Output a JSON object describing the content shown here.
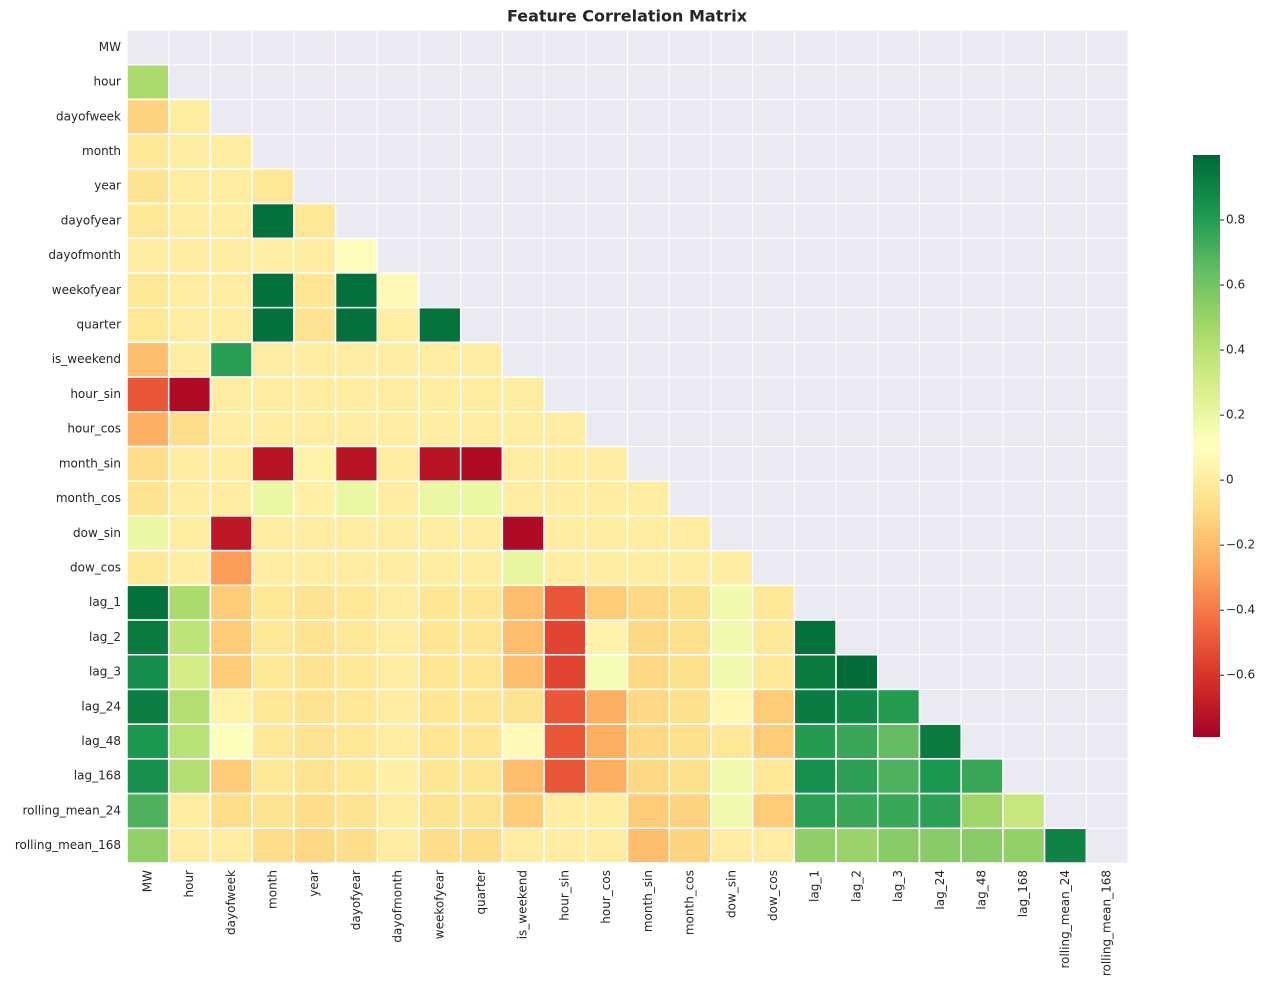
{
  "chart_data": {
    "type": "heatmap",
    "title": "Feature Correlation Matrix",
    "labels": [
      "MW",
      "hour",
      "dayofweek",
      "month",
      "year",
      "dayofyear",
      "dayofmonth",
      "weekofyear",
      "quarter",
      "is_weekend",
      "hour_sin",
      "hour_cos",
      "month_sin",
      "month_cos",
      "dow_sin",
      "dow_cos",
      "lag_1",
      "lag_2",
      "lag_3",
      "lag_24",
      "lag_48",
      "lag_168",
      "rolling_mean_24",
      "rolling_mean_168"
    ],
    "matrix": [
      [
        null,
        null,
        null,
        null,
        null,
        null,
        null,
        null,
        null,
        null,
        null,
        null,
        null,
        null,
        null,
        null,
        null,
        null,
        null,
        null,
        null,
        null,
        null,
        null
      ],
      [
        0.45,
        null,
        null,
        null,
        null,
        null,
        null,
        null,
        null,
        null,
        null,
        null,
        null,
        null,
        null,
        null,
        null,
        null,
        null,
        null,
        null,
        null,
        null,
        null
      ],
      [
        -0.12,
        0.0,
        null,
        null,
        null,
        null,
        null,
        null,
        null,
        null,
        null,
        null,
        null,
        null,
        null,
        null,
        null,
        null,
        null,
        null,
        null,
        null,
        null,
        null
      ],
      [
        -0.03,
        0.0,
        0.0,
        null,
        null,
        null,
        null,
        null,
        null,
        null,
        null,
        null,
        null,
        null,
        null,
        null,
        null,
        null,
        null,
        null,
        null,
        null,
        null,
        null
      ],
      [
        -0.05,
        0.0,
        0.0,
        -0.03,
        null,
        null,
        null,
        null,
        null,
        null,
        null,
        null,
        null,
        null,
        null,
        null,
        null,
        null,
        null,
        null,
        null,
        null,
        null,
        null
      ],
      [
        -0.03,
        0.0,
        0.0,
        0.97,
        -0.03,
        null,
        null,
        null,
        null,
        null,
        null,
        null,
        null,
        null,
        null,
        null,
        null,
        null,
        null,
        null,
        null,
        null,
        null,
        null
      ],
      [
        0.0,
        0.0,
        0.0,
        0.01,
        0.0,
        0.09,
        null,
        null,
        null,
        null,
        null,
        null,
        null,
        null,
        null,
        null,
        null,
        null,
        null,
        null,
        null,
        null,
        null,
        null
      ],
      [
        -0.03,
        0.0,
        0.0,
        0.97,
        -0.04,
        0.97,
        0.07,
        null,
        null,
        null,
        null,
        null,
        null,
        null,
        null,
        null,
        null,
        null,
        null,
        null,
        null,
        null,
        null,
        null
      ],
      [
        -0.03,
        0.0,
        0.0,
        0.97,
        -0.05,
        0.97,
        0.01,
        0.96,
        null,
        null,
        null,
        null,
        null,
        null,
        null,
        null,
        null,
        null,
        null,
        null,
        null,
        null,
        null,
        null
      ],
      [
        -0.2,
        0.0,
        0.79,
        0.0,
        0.0,
        0.0,
        0.0,
        0.0,
        0.0,
        null,
        null,
        null,
        null,
        null,
        null,
        null,
        null,
        null,
        null,
        null,
        null,
        null,
        null,
        null
      ],
      [
        -0.5,
        -0.75,
        0.0,
        0.0,
        0.0,
        0.0,
        0.0,
        0.0,
        0.0,
        0.0,
        null,
        null,
        null,
        null,
        null,
        null,
        null,
        null,
        null,
        null,
        null,
        null,
        null,
        null
      ],
      [
        -0.25,
        -0.08,
        0.0,
        0.0,
        0.0,
        0.0,
        0.0,
        0.0,
        0.0,
        0.0,
        0.0,
        null,
        null,
        null,
        null,
        null,
        null,
        null,
        null,
        null,
        null,
        null,
        null,
        null
      ],
      [
        -0.08,
        0.0,
        0.0,
        -0.72,
        0.03,
        -0.72,
        0.0,
        -0.72,
        -0.75,
        0.0,
        0.0,
        0.0,
        null,
        null,
        null,
        null,
        null,
        null,
        null,
        null,
        null,
        null,
        null,
        null
      ],
      [
        -0.05,
        0.0,
        0.0,
        0.2,
        0.02,
        0.2,
        0.0,
        0.2,
        0.2,
        0.0,
        0.0,
        0.0,
        0.0,
        null,
        null,
        null,
        null,
        null,
        null,
        null,
        null,
        null,
        null,
        null
      ],
      [
        0.2,
        0.0,
        -0.7,
        0.0,
        0.0,
        0.0,
        0.0,
        0.0,
        0.0,
        -0.75,
        0.0,
        0.0,
        0.0,
        0.0,
        null,
        null,
        null,
        null,
        null,
        null,
        null,
        null,
        null,
        null
      ],
      [
        -0.03,
        0.0,
        -0.3,
        0.0,
        0.0,
        0.0,
        0.0,
        0.0,
        0.0,
        0.22,
        0.0,
        0.0,
        0.0,
        0.0,
        0.0,
        null,
        null,
        null,
        null,
        null,
        null,
        null,
        null,
        null
      ],
      [
        0.97,
        0.45,
        -0.15,
        -0.03,
        -0.05,
        -0.03,
        0.0,
        -0.04,
        -0.04,
        -0.2,
        -0.5,
        -0.15,
        -0.1,
        -0.07,
        0.17,
        -0.03,
        null,
        null,
        null,
        null,
        null,
        null,
        null,
        null
      ],
      [
        0.93,
        0.38,
        -0.15,
        -0.03,
        -0.05,
        -0.03,
        0.0,
        -0.04,
        -0.04,
        -0.2,
        -0.55,
        0.03,
        -0.1,
        -0.07,
        0.17,
        -0.03,
        0.97,
        null,
        null,
        null,
        null,
        null,
        null,
        null
      ],
      [
        0.86,
        0.3,
        -0.15,
        -0.03,
        -0.05,
        -0.03,
        0.0,
        -0.04,
        -0.04,
        -0.2,
        -0.55,
        0.15,
        -0.1,
        -0.07,
        0.17,
        -0.03,
        0.93,
        0.98,
        null,
        null,
        null,
        null,
        null,
        null
      ],
      [
        0.92,
        0.42,
        0.03,
        -0.03,
        -0.05,
        -0.03,
        0.0,
        -0.04,
        -0.04,
        -0.05,
        -0.5,
        -0.25,
        -0.1,
        -0.07,
        0.06,
        -0.15,
        0.93,
        0.88,
        0.8,
        null,
        null,
        null,
        null,
        null
      ],
      [
        0.82,
        0.4,
        0.12,
        -0.03,
        -0.05,
        -0.03,
        0.0,
        -0.04,
        -0.04,
        0.07,
        -0.5,
        -0.25,
        -0.1,
        -0.07,
        -0.03,
        -0.15,
        0.8,
        0.75,
        0.65,
        0.93,
        null,
        null,
        null,
        null
      ],
      [
        0.85,
        0.42,
        -0.15,
        -0.03,
        -0.05,
        -0.03,
        0.02,
        -0.04,
        -0.04,
        -0.2,
        -0.5,
        -0.25,
        -0.1,
        -0.07,
        0.17,
        -0.03,
        0.85,
        0.78,
        0.7,
        0.82,
        0.75,
        null,
        null,
        null
      ],
      [
        0.7,
        0.0,
        -0.08,
        -0.05,
        -0.08,
        -0.05,
        0.0,
        -0.05,
        -0.05,
        -0.15,
        0.0,
        0.0,
        -0.15,
        -0.12,
        0.17,
        -0.15,
        0.78,
        0.75,
        0.75,
        0.78,
        0.48,
        0.35,
        null,
        null
      ],
      [
        0.52,
        0.0,
        0.0,
        -0.08,
        -0.1,
        -0.08,
        0.0,
        -0.08,
        -0.08,
        0.0,
        0.0,
        0.0,
        -0.2,
        -0.12,
        0.0,
        0.0,
        0.53,
        0.5,
        0.55,
        0.55,
        0.55,
        0.52,
        0.9,
        null
      ]
    ],
    "colormap": [
      "#a50026",
      "#d73027",
      "#f46d43",
      "#fdae61",
      "#fee08b",
      "#ffffbf",
      "#d9ef8b",
      "#a6d96a",
      "#66bd63",
      "#1a9850",
      "#006837"
    ],
    "clim": [
      -0.79,
      1.0
    ],
    "cticks": [
      {
        "value": -0.6,
        "label": "−0.6"
      },
      {
        "value": -0.4,
        "label": "−0.4"
      },
      {
        "value": -0.2,
        "label": "−0.2"
      },
      0.0,
      0.2,
      0.4,
      0.6,
      0.8
    ]
  }
}
